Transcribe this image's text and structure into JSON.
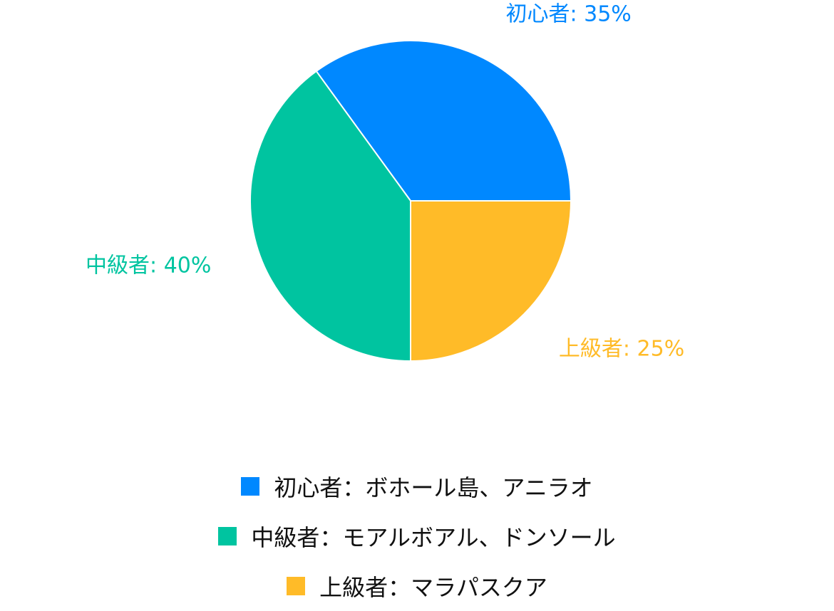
{
  "chart_data": {
    "type": "pie",
    "slices": [
      {
        "label": "初心者: 35%",
        "value": 35,
        "color": "#0088FF"
      },
      {
        "label": "中級者: 40%",
        "value": 40,
        "color": "#00C4A0"
      },
      {
        "label": "上級者: 25%",
        "value": 25,
        "color": "#FFBB28"
      }
    ],
    "legend": [
      {
        "text": "初心者：ボホール島、アニラオ",
        "color": "#0088FF"
      },
      {
        "text": "中級者：モアルボアル、ドンソール",
        "color": "#00C4A0"
      },
      {
        "text": "上級者：マラパスクア",
        "color": "#FFBB28"
      }
    ],
    "legend_position": "bottom"
  }
}
